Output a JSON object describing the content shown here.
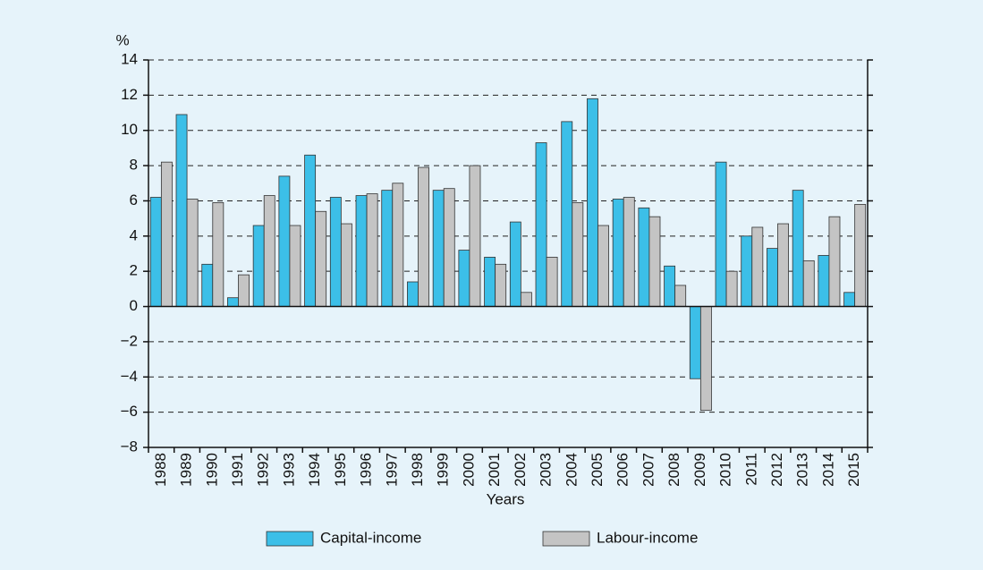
{
  "chart_data": {
    "type": "bar",
    "y_unit": "%",
    "x_label": "Years",
    "categories": [
      "1988",
      "1989",
      "1990",
      "1991",
      "1992",
      "1993",
      "1994",
      "1995",
      "1996",
      "1997",
      "1998",
      "1999",
      "2000",
      "2001",
      "2002",
      "2003",
      "2004",
      "2005",
      "2006",
      "2007",
      "2008",
      "2009",
      "2010",
      "2011",
      "2012",
      "2013",
      "2014",
      "2015"
    ],
    "series": [
      {
        "name": "Capital-income",
        "color": "#3cbfe8",
        "values": [
          6.2,
          10.9,
          2.4,
          0.5,
          4.6,
          7.4,
          8.6,
          6.2,
          6.3,
          6.6,
          1.4,
          6.6,
          3.2,
          2.8,
          4.8,
          9.3,
          10.5,
          11.8,
          6.1,
          5.6,
          2.3,
          -4.1,
          8.2,
          4.0,
          3.3,
          6.6,
          2.9,
          0.8
        ]
      },
      {
        "name": "Labour-income",
        "color": "#c4c4c4",
        "values": [
          8.2,
          6.1,
          5.9,
          1.8,
          6.3,
          4.6,
          5.4,
          4.7,
          6.4,
          7.0,
          7.9,
          6.7,
          8.0,
          2.4,
          0.8,
          2.8,
          5.9,
          4.6,
          6.2,
          5.1,
          1.2,
          -5.9,
          2.0,
          4.5,
          4.7,
          2.6,
          5.1,
          5.8
        ]
      }
    ],
    "ylim": [
      -8,
      14
    ],
    "yticks": [
      {
        "value": -8,
        "label": "−8"
      },
      {
        "value": -6,
        "label": "−6"
      },
      {
        "value": -4,
        "label": "−4"
      },
      {
        "value": -2,
        "label": "−2"
      },
      0,
      2,
      4,
      6,
      8,
      10,
      12,
      14
    ],
    "grid": true
  }
}
